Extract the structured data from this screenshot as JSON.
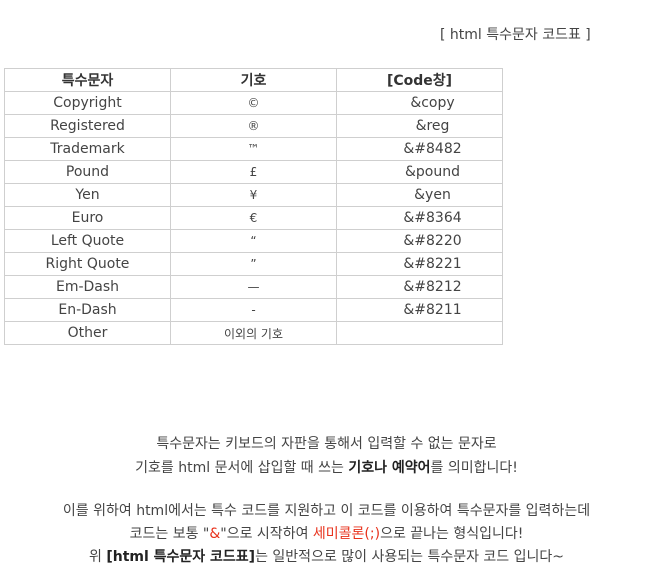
{
  "doc_title": "[ html 특수문자 코드표 ]",
  "table": {
    "headers": [
      "특수문자",
      "기호",
      "[Code창]"
    ],
    "rows": [
      {
        "name": "Copyright",
        "symbol": "©",
        "code": "&copy"
      },
      {
        "name": "Registered",
        "symbol": "®",
        "code": "&reg"
      },
      {
        "name": "Trademark",
        "symbol": "™",
        "code": "&#8482"
      },
      {
        "name": "Pound",
        "symbol": "£",
        "code": "&pound"
      },
      {
        "name": "Yen",
        "symbol": "¥",
        "code": "&yen"
      },
      {
        "name": "Euro",
        "symbol": "€",
        "code": "&#8364"
      },
      {
        "name": "Left Quote",
        "symbol": "“",
        "code": "&#8220"
      },
      {
        "name": "Right Quote",
        "symbol": "”",
        "code": "&#8221"
      },
      {
        "name": "Em-Dash",
        "symbol": "—",
        "code": "&#8212"
      },
      {
        "name": "En-Dash",
        "symbol": "-",
        "code": "&#8211"
      },
      {
        "name": "Other",
        "symbol": "이외의 기호",
        "code": ""
      }
    ]
  },
  "description": {
    "line1": "특수문자는 키보드의 자판을 통해서 입력할 수 없는 문자로",
    "line2_pre": "기호를 html 문서에 삽입할 때 쓰는 ",
    "line2_bold": "기호나 예약어",
    "line2_post": "를 의미합니다!",
    "line3": "이를 위하여 html에서는 특수 코드를 지원하고 이 코드를 이용하여 특수문자를 입력하는데",
    "line4_pre": "코드는 보통 \"",
    "line4_amp": "&",
    "line4_mid": "\"으로 시작하여 ",
    "line4_semi": "세미콜론(;)",
    "line4_post": "으로 끝나는 형식입니다!",
    "line5_pre": "위 ",
    "line5_bold": "[html 특수문자 코드표]",
    "line5_post": "는 일반적으로 많이 사용되는 특수문자 코드 입니다~"
  },
  "colors": {
    "accent_red": "#e8321c",
    "border": "#cfcfcf"
  }
}
